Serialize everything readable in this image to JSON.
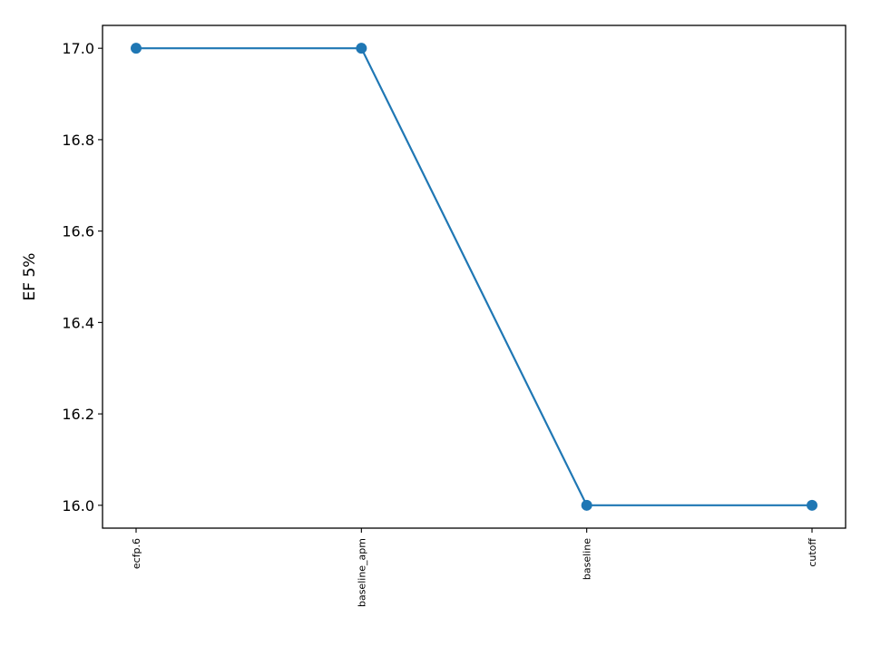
{
  "chart_data": {
    "type": "line",
    "categories": [
      "ecfp.6",
      "baseline_apm",
      "baseline",
      "cutoff"
    ],
    "series": [
      {
        "values": [
          17.0,
          17.0,
          16.0,
          16.0
        ]
      }
    ],
    "title": "",
    "xlabel": "",
    "ylabel": "EF 5%",
    "ylim": [
      15.95,
      17.05
    ],
    "yticks": [
      16.0,
      16.2,
      16.4,
      16.6,
      16.8,
      17.0
    ],
    "ytick_labels": [
      "16.0",
      "16.2",
      "16.4",
      "16.6",
      "16.8",
      "17.0"
    ],
    "grid": false,
    "legend": "none",
    "line_color": "#1f77b4",
    "marker": "circle"
  }
}
